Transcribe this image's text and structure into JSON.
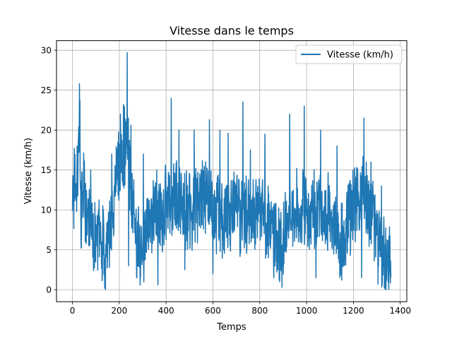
{
  "chart_data": {
    "type": "line",
    "title": "Vitesse dans le temps",
    "xlabel": "Temps",
    "ylabel": "Vitesse (km/h)",
    "xlim": [
      -68,
      1428
    ],
    "ylim": [
      -1.5,
      31.2
    ],
    "xticks": [
      0,
      200,
      400,
      600,
      800,
      1000,
      1200,
      1400
    ],
    "yticks": [
      0,
      5,
      10,
      15,
      20,
      25,
      30
    ],
    "grid": true,
    "legend_position": "top-right",
    "series": [
      {
        "name": "Vitesse (km/h)",
        "color": "#1f77b4",
        "x_start": 0,
        "x_end": 1360,
        "anchors": [
          [
            0,
            9.5
          ],
          [
            10,
            14
          ],
          [
            20,
            12
          ],
          [
            30,
            22
          ],
          [
            35,
            10
          ],
          [
            50,
            13
          ],
          [
            60,
            9
          ],
          [
            80,
            8
          ],
          [
            100,
            5
          ],
          [
            120,
            7
          ],
          [
            140,
            4
          ],
          [
            160,
            8
          ],
          [
            180,
            12
          ],
          [
            200,
            16
          ],
          [
            220,
            17
          ],
          [
            235,
            20
          ],
          [
            250,
            12
          ],
          [
            270,
            7
          ],
          [
            290,
            5
          ],
          [
            320,
            10
          ],
          [
            350,
            9
          ],
          [
            380,
            9
          ],
          [
            420,
            12
          ],
          [
            460,
            11
          ],
          [
            500,
            10
          ],
          [
            540,
            11
          ],
          [
            580,
            12
          ],
          [
            610,
            10
          ],
          [
            650,
            9
          ],
          [
            700,
            10
          ],
          [
            750,
            9
          ],
          [
            800,
            9
          ],
          [
            850,
            8
          ],
          [
            880,
            6
          ],
          [
            900,
            6
          ],
          [
            930,
            10
          ],
          [
            960,
            11
          ],
          [
            1000,
            9
          ],
          [
            1050,
            10
          ],
          [
            1100,
            9
          ],
          [
            1140,
            6
          ],
          [
            1170,
            7
          ],
          [
            1200,
            11
          ],
          [
            1230,
            12
          ],
          [
            1260,
            11
          ],
          [
            1290,
            8
          ],
          [
            1310,
            6
          ],
          [
            1340,
            4
          ],
          [
            1360,
            4
          ]
        ],
        "amplitude": 4.2,
        "peaks": [
          [
            20,
            18
          ],
          [
            32,
            23.7
          ],
          [
            78,
            15
          ],
          [
            130,
            10.5
          ],
          [
            168,
            17
          ],
          [
            205,
            22
          ],
          [
            218,
            23.2
          ],
          [
            234,
            29.7
          ],
          [
            250,
            20.6
          ],
          [
            303,
            17
          ],
          [
            360,
            15
          ],
          [
            422,
            24
          ],
          [
            455,
            20
          ],
          [
            520,
            20
          ],
          [
            585,
            21.3
          ],
          [
            630,
            20
          ],
          [
            665,
            19.6
          ],
          [
            728,
            23.5
          ],
          [
            760,
            17.5
          ],
          [
            822,
            19.5
          ],
          [
            928,
            22
          ],
          [
            990,
            23
          ],
          [
            1060,
            20
          ],
          [
            1130,
            18
          ],
          [
            1245,
            21.5
          ],
          [
            1275,
            16
          ],
          [
            1320,
            13
          ]
        ],
        "troughs": [
          [
            55,
            6
          ],
          [
            138,
            0.2
          ],
          [
            158,
            2.8
          ],
          [
            240,
            3
          ],
          [
            275,
            1.5
          ],
          [
            305,
            1
          ],
          [
            365,
            0.6
          ],
          [
            480,
            2.5
          ],
          [
            600,
            2
          ],
          [
            860,
            1.5
          ],
          [
            885,
            1
          ],
          [
            895,
            0.3
          ],
          [
            1040,
            1.5
          ],
          [
            1150,
            1.2
          ],
          [
            1235,
            1.5
          ],
          [
            1305,
            0.7
          ],
          [
            1335,
            0.1
          ],
          [
            1348,
            1
          ]
        ]
      }
    ]
  }
}
